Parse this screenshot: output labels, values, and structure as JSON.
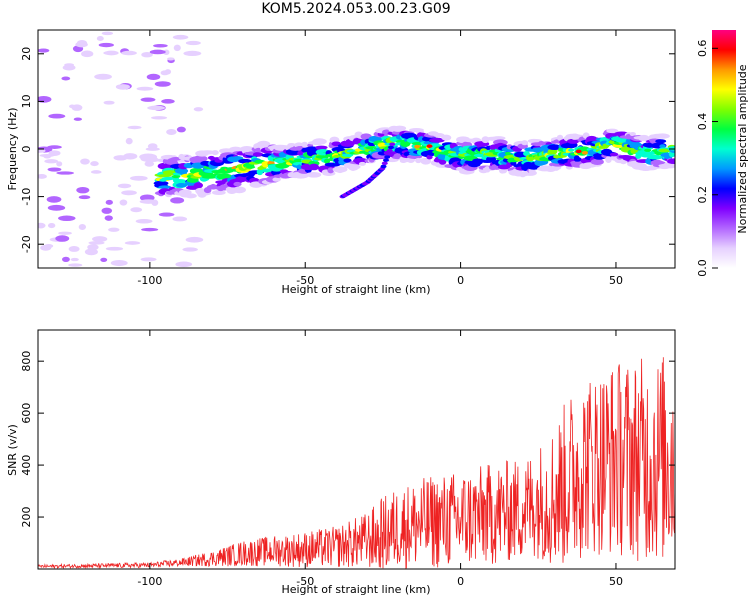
{
  "title": "KOM5.2024.053.00.23.G09",
  "chart_data": [
    {
      "type": "heatmap",
      "xlabel": "Height of straight line (km)",
      "ylabel": "Frequency (Hz)",
      "xlim": [
        -136,
        69
      ],
      "ylim": [
        -25,
        25
      ],
      "xticks": [
        -100,
        -50,
        0,
        50
      ],
      "yticks": [
        -20,
        -10,
        0,
        10,
        20
      ],
      "colorbar": {
        "label": "Normalized spectral amplitude",
        "range": [
          0.0,
          0.65
        ],
        "ticks": [
          "0.0",
          "0.2",
          "0.4",
          "0.6"
        ],
        "colors": [
          "#ffffff",
          "#e6d0ff",
          "#b266ff",
          "#8000ff",
          "#0000ff",
          "#0099ff",
          "#00ffd0",
          "#00ff40",
          "#80ff00",
          "#ffff00",
          "#ff9900",
          "#ff0000",
          "#ff0080"
        ]
      },
      "ridge": {
        "x": [
          -95,
          -80,
          -60,
          -40,
          -30,
          -25,
          -18,
          -10,
          0,
          10,
          20,
          30,
          40,
          50,
          60,
          69
        ],
        "y": [
          -6,
          -5,
          -3,
          -1.5,
          0,
          1,
          1,
          0.5,
          -1.5,
          -1,
          -2,
          -1,
          -0.5,
          1,
          -1,
          0
        ]
      },
      "branch": {
        "x": [
          -38,
          -30,
          -25,
          -22
        ],
        "y": [
          -10,
          -7,
          -4,
          1
        ]
      }
    },
    {
      "type": "line",
      "xlabel": "Height of straight line (km)",
      "ylabel": "SNR (v/v)",
      "xlim": [
        -136,
        69
      ],
      "ylim": [
        0,
        920
      ],
      "xticks": [
        -100,
        -50,
        0,
        50
      ],
      "yticks": [
        200,
        400,
        600,
        800
      ],
      "color": "#ee2222",
      "envelope": {
        "x": [
          -136,
          -100,
          -90,
          -80,
          -70,
          -60,
          -50,
          -40,
          -30,
          -25,
          -20,
          -10,
          0,
          10,
          20,
          25,
          30,
          35,
          40,
          50,
          60,
          69
        ],
        "mean": [
          10,
          15,
          25,
          40,
          60,
          70,
          75,
          85,
          110,
          130,
          160,
          180,
          190,
          210,
          230,
          260,
          280,
          340,
          400,
          430,
          420,
          430
        ],
        "amp": [
          6,
          10,
          15,
          30,
          50,
          60,
          70,
          80,
          110,
          150,
          160,
          180,
          190,
          200,
          200,
          220,
          280,
          340,
          350,
          380,
          400,
          420
        ]
      }
    }
  ]
}
